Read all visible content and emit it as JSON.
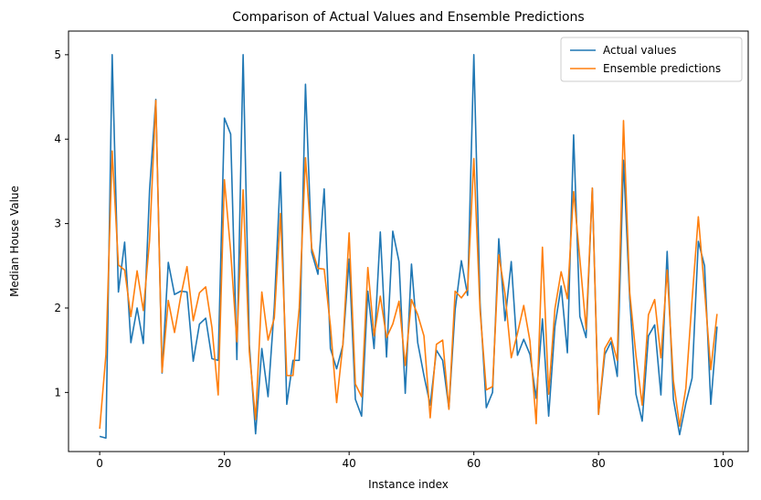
{
  "chart_data": {
    "type": "line",
    "title": "Comparison of Actual Values and Ensemble Predictions",
    "xlabel": "Instance index",
    "ylabel": "Median House Value",
    "xlim": [
      -5,
      104
    ],
    "ylim": [
      0.3,
      5.28
    ],
    "xticks": [
      0,
      20,
      40,
      60,
      80,
      100
    ],
    "yticks": [
      1,
      2,
      3,
      4,
      5
    ],
    "grid": false,
    "legend_position": "top-right",
    "series": [
      {
        "name": "Actual values",
        "color": "#1f77b4",
        "values": [
          0.48,
          0.46,
          5.0,
          2.19,
          2.78,
          1.59,
          2.0,
          1.58,
          3.4,
          4.47,
          1.23,
          2.54,
          2.16,
          2.2,
          2.19,
          1.37,
          1.81,
          1.88,
          1.4,
          1.38,
          4.25,
          4.06,
          1.39,
          5.0,
          1.57,
          0.51,
          1.52,
          0.95,
          2.01,
          3.61,
          0.86,
          1.38,
          1.38,
          4.65,
          2.66,
          2.4,
          3.41,
          1.52,
          1.28,
          1.56,
          2.58,
          0.92,
          0.72,
          2.2,
          1.52,
          2.9,
          1.42,
          2.91,
          2.55,
          0.99,
          2.52,
          1.59,
          1.2,
          0.85,
          1.5,
          1.38,
          0.81,
          1.98,
          2.56,
          2.15,
          5.0,
          2.05,
          0.82,
          1.0,
          2.82,
          1.85,
          2.55,
          1.44,
          1.63,
          1.45,
          0.93,
          1.87,
          0.72,
          1.78,
          2.26,
          1.47,
          4.05,
          1.9,
          1.65,
          3.42,
          0.74,
          1.45,
          1.6,
          1.19,
          3.75,
          2.11,
          0.98,
          0.66,
          1.67,
          1.8,
          0.97,
          2.67,
          0.92,
          0.5,
          0.87,
          1.17,
          2.79,
          2.5,
          0.86,
          1.78
        ]
      },
      {
        "name": "Ensemble predictions",
        "color": "#ff7f0e",
        "values": [
          0.57,
          1.45,
          3.86,
          2.51,
          2.45,
          1.9,
          2.44,
          1.97,
          2.8,
          4.46,
          1.24,
          2.09,
          1.71,
          2.14,
          2.49,
          1.85,
          2.18,
          2.25,
          1.77,
          0.97,
          3.52,
          2.67,
          1.6,
          3.4,
          1.48,
          0.68,
          2.19,
          1.62,
          1.88,
          3.12,
          1.2,
          1.2,
          2.0,
          3.78,
          2.71,
          2.47,
          2.46,
          1.79,
          0.88,
          1.57,
          2.89,
          1.1,
          0.95,
          2.48,
          1.67,
          2.14,
          1.65,
          1.81,
          2.08,
          1.32,
          2.1,
          1.92,
          1.67,
          0.7,
          1.57,
          1.62,
          0.8,
          2.2,
          2.12,
          2.22,
          3.77,
          1.97,
          1.03,
          1.07,
          2.63,
          2.17,
          1.41,
          1.7,
          2.03,
          1.61,
          0.63,
          2.72,
          0.98,
          1.99,
          2.43,
          2.11,
          3.38,
          2.58,
          1.75,
          3.42,
          0.74,
          1.52,
          1.65,
          1.38,
          4.22,
          2.18,
          1.44,
          0.85,
          1.92,
          2.1,
          1.41,
          2.45,
          1.14,
          0.6,
          1.05,
          2.1,
          3.08,
          2.21,
          1.27,
          1.93
        ]
      }
    ]
  }
}
